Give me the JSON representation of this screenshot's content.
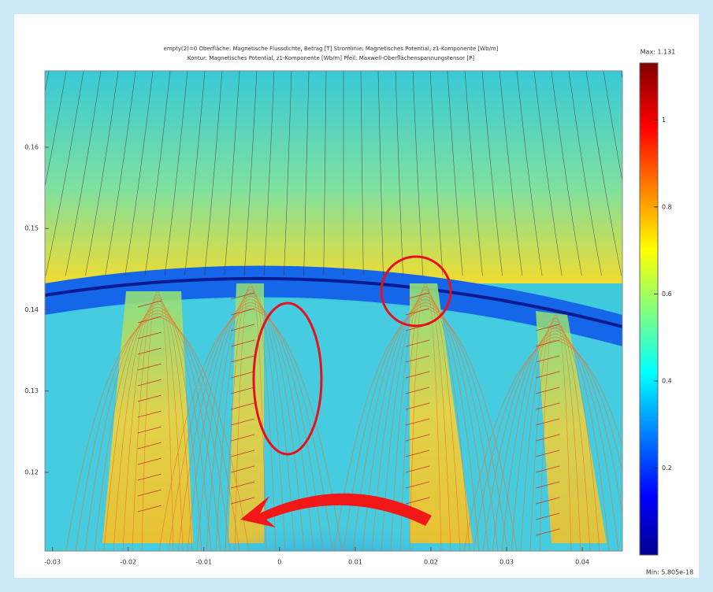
{
  "chart_data": {
    "type": "heatmap",
    "title": [
      "empty(2)=0  Oberfläche: Magnetische Flussdichte, Betrag [T]  Stromlinie: Magnetisches Potential, z1-Komponente [Wb/m]",
      "Kontur: Magnetisches Potential, z1-Komponente [Wb/m]  Pfeil: Maxwell-Oberflächenspannungstensor [P]"
    ],
    "xlim": [
      -0.031,
      0.0453
    ],
    "xticks": [
      -0.03,
      -0.02,
      -0.01,
      0,
      0.01,
      0.02,
      0.03,
      0.04
    ],
    "ylim": [
      0.1103,
      0.1694
    ],
    "yticks": [
      0.16,
      0.15,
      0.14,
      0.13,
      0.12
    ],
    "colorbar": {
      "lim": [
        0,
        1.131
      ],
      "ticks": [
        1,
        0.8,
        0.6,
        0.4,
        0.2
      ],
      "max_label": "Max: 1.131",
      "min_label": "Min: 5.805e-18"
    }
  }
}
